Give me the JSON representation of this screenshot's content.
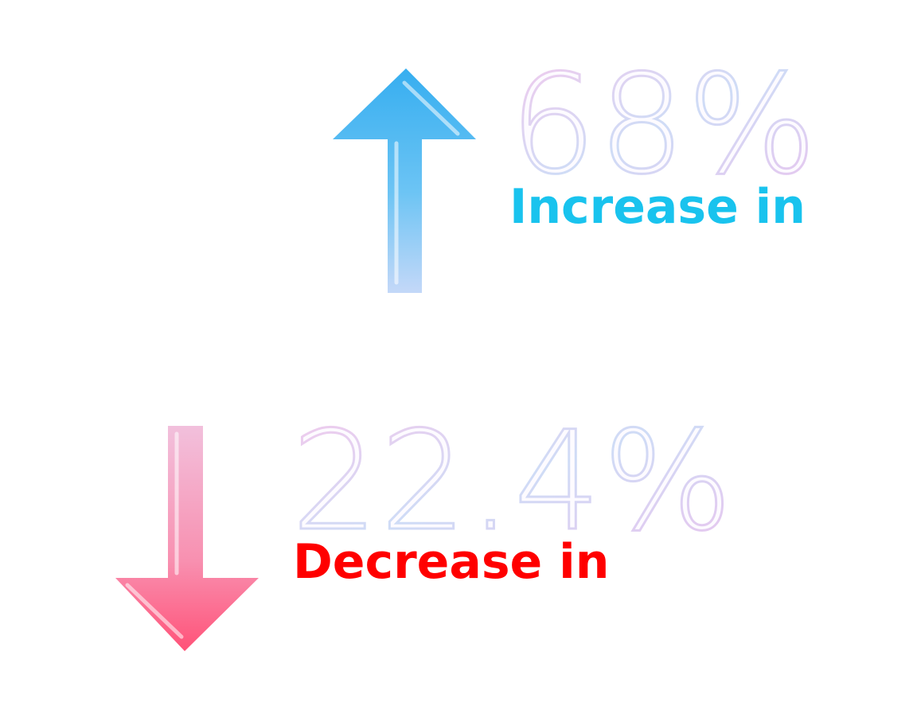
{
  "stats": [
    {
      "value": "68%",
      "label": "Increase in",
      "label_color": "#19c3ee"
    },
    {
      "value": "22.4%",
      "label": "Decrease in",
      "label_color": "#ff0000"
    }
  ]
}
